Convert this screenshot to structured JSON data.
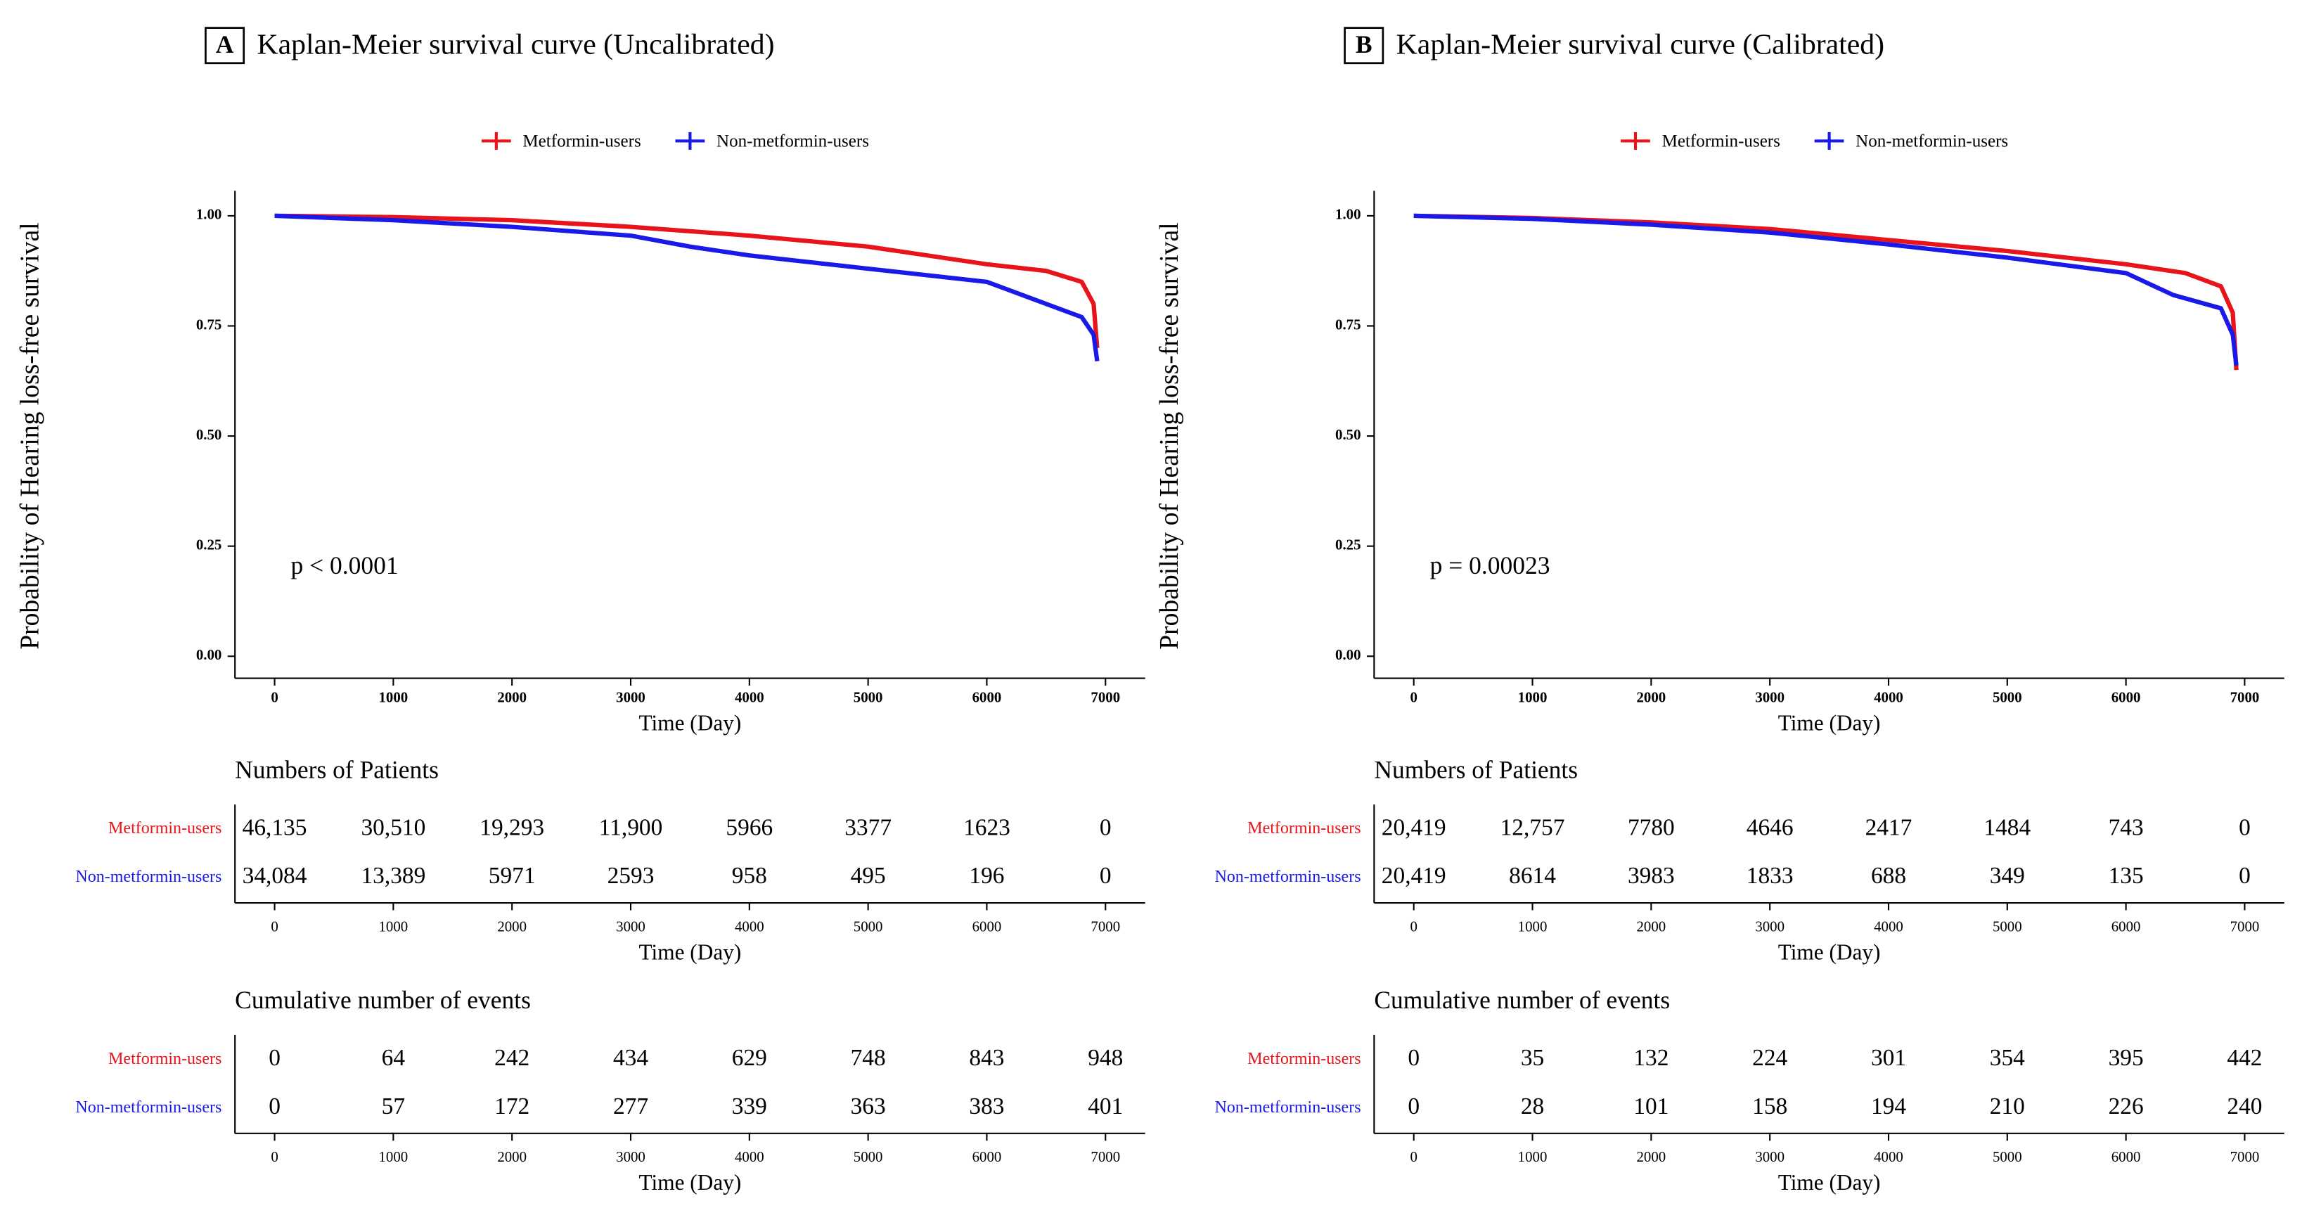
{
  "chart_data": [
    {
      "type": "line",
      "panel": "A",
      "title": "Kaplan-Meier survival curve (Uncalibrated)",
      "ylabel": "Probability of Hearing loss-free survival",
      "xlabel": "Time (Day)",
      "annotation": "p < 0.0001",
      "xlim": [
        0,
        7000
      ],
      "xticks": [
        0,
        1000,
        2000,
        3000,
        4000,
        5000,
        6000,
        7000
      ],
      "ylim": [
        0,
        1
      ],
      "yticks": [
        {
          "value": 0,
          "label": "0.00"
        },
        {
          "value": 0.25,
          "label": "0.25"
        },
        {
          "value": 0.5,
          "label": "0.50"
        },
        {
          "value": 0.75,
          "label": "0.75"
        },
        {
          "value": 1,
          "label": "1.00"
        }
      ],
      "series": [
        {
          "name": "Metformin-users",
          "color": "#e8141b",
          "x": [
            0,
            1000,
            2000,
            3000,
            4000,
            5000,
            6000,
            6500,
            6800,
            6900,
            6930
          ],
          "values": [
            1.0,
            0.997,
            0.99,
            0.975,
            0.955,
            0.93,
            0.89,
            0.875,
            0.85,
            0.8,
            0.7
          ]
        },
        {
          "name": "Non-metformin-users",
          "color": "#1a1ae8",
          "x": [
            0,
            1000,
            2000,
            3000,
            3500,
            4000,
            5000,
            6000,
            6500,
            6800,
            6900,
            6930
          ],
          "values": [
            1.0,
            0.99,
            0.975,
            0.955,
            0.93,
            0.91,
            0.88,
            0.85,
            0.8,
            0.77,
            0.73,
            0.67
          ]
        }
      ],
      "tables": [
        {
          "title": "Numbers of Patients",
          "xlabel": "Time (Day)",
          "xticks": [
            0,
            1000,
            2000,
            3000,
            4000,
            5000,
            6000,
            7000
          ],
          "rows": [
            {
              "name": "Metformin-users",
              "color": "#e8141b",
              "values": [
                46135,
                30510,
                19293,
                11900,
                5966,
                3377,
                1623,
                0
              ],
              "value_labels": [
                "46,135",
                "30,510",
                "19,293",
                "11,900",
                "5966",
                "3377",
                "1623",
                "0"
              ]
            },
            {
              "name": "Non-metformin-users",
              "color": "#1a1ae8",
              "values": [
                34084,
                13389,
                5971,
                2593,
                958,
                495,
                196,
                0
              ],
              "value_labels": [
                "34,084",
                "13,389",
                "5971",
                "2593",
                "958",
                "495",
                "196",
                "0"
              ]
            }
          ]
        },
        {
          "title": "Cumulative number of events",
          "xlabel": "Time (Day)",
          "xticks": [
            0,
            1000,
            2000,
            3000,
            4000,
            5000,
            6000,
            7000
          ],
          "rows": [
            {
              "name": "Metformin-users",
              "color": "#e8141b",
              "values": [
                0,
                64,
                242,
                434,
                629,
                748,
                843,
                948
              ]
            },
            {
              "name": "Non-metformin-users",
              "color": "#1a1ae8",
              "values": [
                0,
                57,
                172,
                277,
                339,
                363,
                383,
                401
              ]
            }
          ]
        }
      ]
    },
    {
      "type": "line",
      "panel": "B",
      "title": "Kaplan-Meier survival curve (Calibrated)",
      "ylabel": "Probability of Hearing loss-free survival",
      "xlabel": "Time (Day)",
      "annotation": "p = 0.00023",
      "xlim": [
        0,
        7000
      ],
      "xticks": [
        0,
        1000,
        2000,
        3000,
        4000,
        5000,
        6000,
        7000
      ],
      "ylim": [
        0,
        1
      ],
      "yticks": [
        {
          "value": 0,
          "label": "0.00"
        },
        {
          "value": 0.25,
          "label": "0.25"
        },
        {
          "value": 0.5,
          "label": "0.50"
        },
        {
          "value": 0.75,
          "label": "0.75"
        },
        {
          "value": 1,
          "label": "1.00"
        }
      ],
      "series": [
        {
          "name": "Metformin-users",
          "color": "#e8141b",
          "x": [
            0,
            1000,
            2000,
            3000,
            4000,
            5000,
            6000,
            6500,
            6800,
            6900,
            6930
          ],
          "values": [
            1.0,
            0.995,
            0.985,
            0.97,
            0.945,
            0.92,
            0.89,
            0.87,
            0.84,
            0.78,
            0.65
          ]
        },
        {
          "name": "Non-metformin-users",
          "color": "#1a1ae8",
          "x": [
            0,
            1000,
            2000,
            3000,
            4000,
            5000,
            6000,
            6400,
            6800,
            6900,
            6930
          ],
          "values": [
            1.0,
            0.993,
            0.98,
            0.962,
            0.935,
            0.905,
            0.87,
            0.82,
            0.79,
            0.73,
            0.66
          ]
        }
      ],
      "tables": [
        {
          "title": "Numbers of Patients",
          "xlabel": "Time (Day)",
          "xticks": [
            0,
            1000,
            2000,
            3000,
            4000,
            5000,
            6000,
            7000
          ],
          "rows": [
            {
              "name": "Metformin-users",
              "color": "#e8141b",
              "values": [
                20419,
                12757,
                7780,
                4646,
                2417,
                1484,
                743,
                0
              ],
              "value_labels": [
                "20,419",
                "12,757",
                "7780",
                "4646",
                "2417",
                "1484",
                "743",
                "0"
              ]
            },
            {
              "name": "Non-metformin-users",
              "color": "#1a1ae8",
              "values": [
                20419,
                8614,
                3983,
                1833,
                688,
                349,
                135,
                0
              ],
              "value_labels": [
                "20,419",
                "8614",
                "3983",
                "1833",
                "688",
                "349",
                "135",
                "0"
              ]
            }
          ]
        },
        {
          "title": "Cumulative number of events",
          "xlabel": "Time (Day)",
          "xticks": [
            0,
            1000,
            2000,
            3000,
            4000,
            5000,
            6000,
            7000
          ],
          "rows": [
            {
              "name": "Metformin-users",
              "color": "#e8141b",
              "values": [
                0,
                35,
                132,
                224,
                301,
                354,
                395,
                442
              ]
            },
            {
              "name": "Non-metformin-users",
              "color": "#1a1ae8",
              "values": [
                0,
                28,
                101,
                158,
                194,
                210,
                226,
                240
              ]
            }
          ]
        }
      ]
    }
  ]
}
